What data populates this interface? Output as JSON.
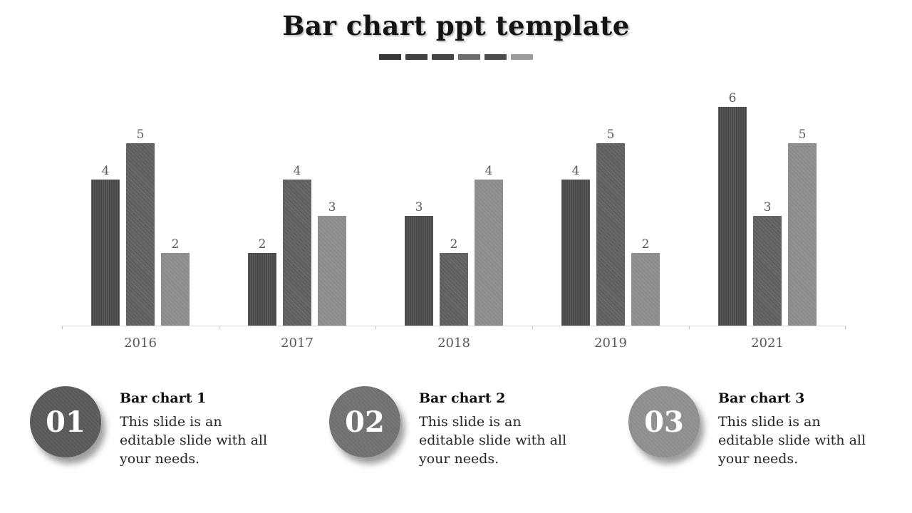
{
  "slide": {
    "title": "Bar chart ppt template",
    "accent_dashes": [
      "#363636",
      "#404040",
      "#464646",
      "#6e6e6e",
      "#4d4d4d",
      "#9c9c9c"
    ]
  },
  "chart_data": {
    "type": "bar",
    "categories": [
      "2016",
      "2017",
      "2018",
      "2019",
      "2021"
    ],
    "series": [
      {
        "name": "series-1",
        "color": "#494949",
        "values": [
          4,
          2,
          3,
          4,
          6
        ]
      },
      {
        "name": "series-2",
        "color": "#5d5d5d",
        "values": [
          5,
          4,
          2,
          5,
          3
        ]
      },
      {
        "name": "series-3",
        "color": "#8a8a8a",
        "values": [
          2,
          3,
          4,
          2,
          5
        ]
      }
    ],
    "title": "",
    "xlabel": "",
    "ylabel": "",
    "ylim": [
      0,
      6
    ],
    "grid": "off",
    "legend_position": "none",
    "data_labels": true,
    "axis_color": "#d9d9d9",
    "tick_color": "#bfbfbf",
    "label_color": "#595959"
  },
  "callouts": [
    {
      "number": "01",
      "circle_color": "#575757",
      "title": "Bar chart 1",
      "body": "This slide is an editable slide with all your needs."
    },
    {
      "number": "02",
      "circle_color": "#6f6f6f",
      "title": "Bar chart 2",
      "body": "This slide is an editable slide with all your needs."
    },
    {
      "number": "03",
      "circle_color": "#8d8d8d",
      "title": "Bar chart 3",
      "body": "This slide is an editable slide with all your needs."
    }
  ]
}
